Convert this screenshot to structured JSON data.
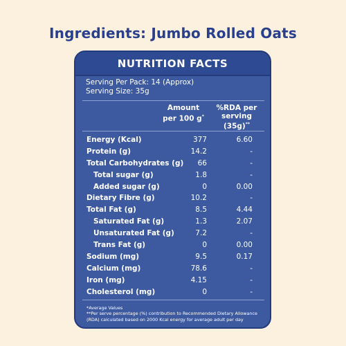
{
  "page_title": "Ingredients: Jumbo Rolled Oats",
  "card": {
    "title": "NUTRITION FACTS",
    "serving_per_pack": "Serving Per Pack: 14 (Approx)",
    "serving_size": "Serving Size: 35g",
    "col_amount_line1": "Amount",
    "col_amount_line2": "per 100 g",
    "col_amount_mark": "*",
    "col_rda_line1": "%RDA per",
    "col_rda_line2": "serving",
    "col_rda_line3": "(35g)",
    "col_rda_mark": "**"
  },
  "rows": [
    {
      "label": "Energy (Kcal)",
      "amount": "377",
      "rda": "6.60",
      "sub": false
    },
    {
      "label": "Protein (g)",
      "amount": "14.2",
      "rda": "-",
      "sub": false
    },
    {
      "label": "Total Carbohydrates (g)",
      "amount": "66",
      "rda": "-",
      "sub": false
    },
    {
      "label": "Total sugar (g)",
      "amount": "1.8",
      "rda": "-",
      "sub": true
    },
    {
      "label": "Added sugar (g)",
      "amount": "0",
      "rda": "0.00",
      "sub": true
    },
    {
      "label": "Dietary Fibre (g)",
      "amount": "10.2",
      "rda": "-",
      "sub": false
    },
    {
      "label": "Total Fat (g)",
      "amount": "8.5",
      "rda": "4.44",
      "sub": false
    },
    {
      "label": "Saturated Fat (g)",
      "amount": "1.3",
      "rda": "2.07",
      "sub": true
    },
    {
      "label": "Unsaturated Fat (g)",
      "amount": "7.2",
      "rda": "-",
      "sub": true
    },
    {
      "label": "Trans Fat (g)",
      "amount": "0",
      "rda": "0.00",
      "sub": true
    },
    {
      "label": "Sodium (mg)",
      "amount": "9.5",
      "rda": "0.17",
      "sub": false
    },
    {
      "label": "Calcium (mg)",
      "amount": "78.6",
      "rda": "-",
      "sub": false
    },
    {
      "label": "Iron (mg)",
      "amount": "4.15",
      "rda": "-",
      "sub": false
    },
    {
      "label": "Cholesterol (mg)",
      "amount": "0",
      "rda": "-",
      "sub": false
    }
  ],
  "footnotes": {
    "line1": "*Average Values",
    "line2": "**Per serve percentage (%) contribution to Recommended Dietary Allowance (RDA) calculated based on 2000 Kcal energy for average adult per day"
  },
  "colors": {
    "background": "#fbf1de",
    "title": "#2a3f8c",
    "card": "#3d5aa0",
    "card_header": "#2e4a93",
    "border": "#233a7c"
  }
}
